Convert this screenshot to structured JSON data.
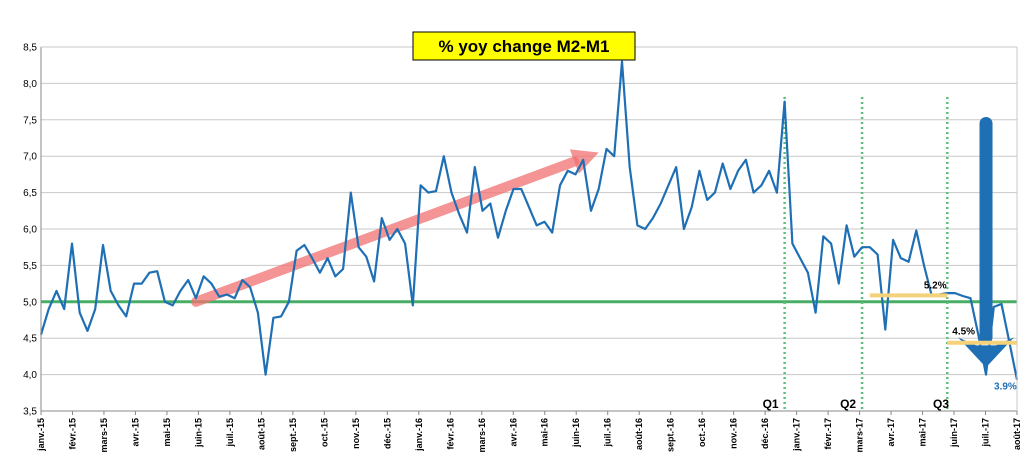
{
  "chart_data": {
    "type": "line",
    "title": "% yoy change M2-M1",
    "xlabel": "",
    "ylabel": "",
    "ylim": [
      3.5,
      8.5
    ],
    "yticks": [
      "3,5",
      "4,0",
      "4,5",
      "5,0",
      "5,5",
      "6,0",
      "6,5",
      "7,0",
      "7,5",
      "8,0",
      "8,5"
    ],
    "xticks": [
      "janv.-15",
      "févr.-15",
      "mars-15",
      "avr.-15",
      "mai-15",
      "juin-15",
      "juil.-15",
      "août-15",
      "sept.-15",
      "oct.-15",
      "nov.-15",
      "déc.-15",
      "janv.-16",
      "févr.-16",
      "mars-16",
      "avr.-16",
      "mai-16",
      "juin-16",
      "juil.-16",
      "août-16",
      "sept.-16",
      "oct.-16",
      "nov.-16",
      "déc.-16",
      "janv.-17",
      "févr.-17",
      "mars-17",
      "avr.-17",
      "mai-17",
      "juin-17",
      "juil.-17",
      "août-17"
    ],
    "grid": true,
    "series": [
      {
        "color": "#1f6fb5",
        "values": [
          4.55,
          4.9,
          5.15,
          4.9,
          5.8,
          4.85,
          4.6,
          4.9,
          5.78,
          5.15,
          4.95,
          4.8,
          5.25,
          5.25,
          5.4,
          5.42,
          5.0,
          4.95,
          5.15,
          5.3,
          5.05,
          5.35,
          5.25,
          5.07,
          5.1,
          5.05,
          5.3,
          5.2,
          4.85,
          4.0,
          4.78,
          4.8,
          5.0,
          5.7,
          5.78,
          5.6,
          5.4,
          5.6,
          5.35,
          5.45,
          6.5,
          5.75,
          5.62,
          5.28,
          6.15,
          5.85,
          6.0,
          5.8,
          4.95,
          6.6,
          6.5,
          6.52,
          7.0,
          6.5,
          6.2,
          5.95,
          6.85,
          6.25,
          6.35,
          5.88,
          6.25,
          6.55,
          6.55,
          6.3,
          6.05,
          6.1,
          5.95,
          6.6,
          6.8,
          6.75,
          6.95,
          6.25,
          6.55,
          7.1,
          7.0,
          8.3,
          6.85,
          6.05,
          6.0,
          6.15,
          6.35,
          6.6,
          6.85,
          6.0,
          6.3,
          6.8,
          6.4,
          6.5,
          6.9,
          6.55,
          6.8,
          6.95,
          6.5,
          6.6,
          6.8,
          6.5,
          7.75,
          5.8,
          5.6,
          5.4,
          4.85,
          5.9,
          5.8,
          5.25,
          6.05,
          5.62,
          5.75,
          5.75,
          5.65,
          4.62,
          5.85,
          5.6,
          5.55,
          5.98,
          5.5,
          5.08,
          5.1,
          5.12,
          5.12,
          5.08,
          5.05,
          4.55,
          4.0,
          4.93,
          4.97,
          4.45,
          3.93
        ]
      }
    ],
    "reference_lines": [
      {
        "value": 5.0,
        "color": "#2ea44f"
      }
    ],
    "trend_arrows": [
      {
        "from": [
          20,
          5.0
        ],
        "to": [
          72,
          7.05
        ],
        "color": "#f07070"
      },
      {
        "from": [
          122,
          7.45
        ],
        "to": [
          122,
          4.1
        ],
        "color": "#1f6fb5"
      }
    ],
    "level_markers": [
      {
        "label": "5.2%",
        "value": 5.17,
        "x_from": 107,
        "x_to": 117,
        "color": "#f5d27a",
        "label_color": "#000000"
      },
      {
        "label": "4.5%",
        "value": 4.52,
        "x_from": 117,
        "x_to": 126,
        "color": "#f5d27a",
        "label_color": "#000000"
      },
      {
        "label": "3.9%",
        "value": 3.93,
        "x_from": 122,
        "x_to": 122,
        "color": "#1f6fb5",
        "label_color": "#1f6fb5"
      }
    ],
    "quarter_markers": [
      {
        "label": "Q1",
        "x": 96
      },
      {
        "label": "Q2",
        "x": 106
      },
      {
        "label": "Q3",
        "x": 118
      }
    ],
    "quarter_lines_x": [
      96,
      106,
      117
    ],
    "quarter_line_color": "#5cc07a"
  }
}
